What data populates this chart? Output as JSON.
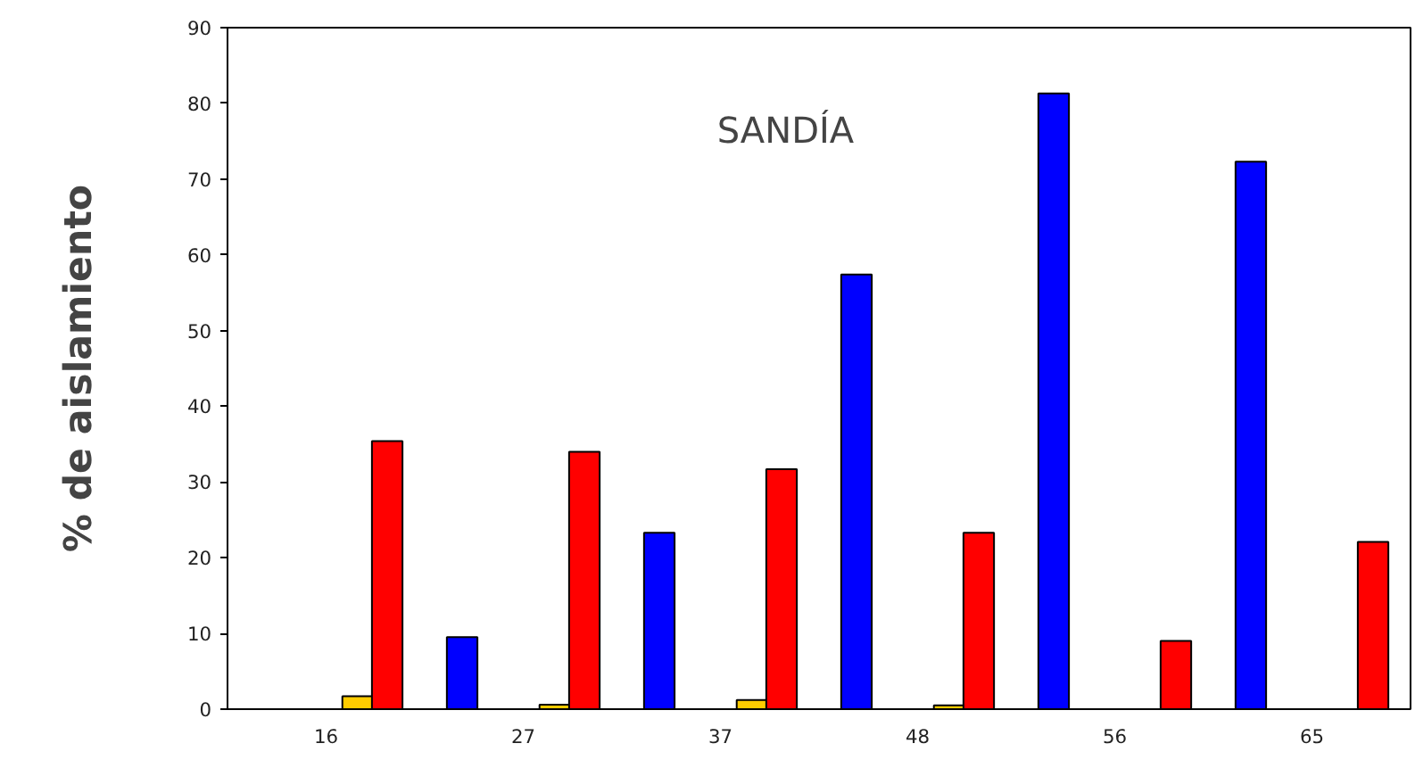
{
  "chart_data": {
    "type": "bar",
    "title": "SANDÍA",
    "ylabel": "% de aislamiento",
    "categories": [
      "16",
      "27",
      "37",
      "48",
      "56",
      "65"
    ],
    "series": [
      {
        "color": "#0000ff",
        "values": [
          null,
          9.5,
          23.3,
          57.4,
          81.3,
          72.3
        ]
      },
      {
        "color": "#ffcc00",
        "values": [
          1.7,
          0.6,
          1.2,
          0.5,
          null,
          null
        ]
      },
      {
        "color": "#ff0000",
        "values": [
          35.4,
          34.0,
          31.7,
          23.3,
          9.0,
          22.1
        ]
      }
    ],
    "ylim": [
      0,
      90
    ],
    "yticks": [
      0,
      10,
      20,
      30,
      40,
      50,
      60,
      70,
      80,
      90
    ],
    "grid": false
  }
}
